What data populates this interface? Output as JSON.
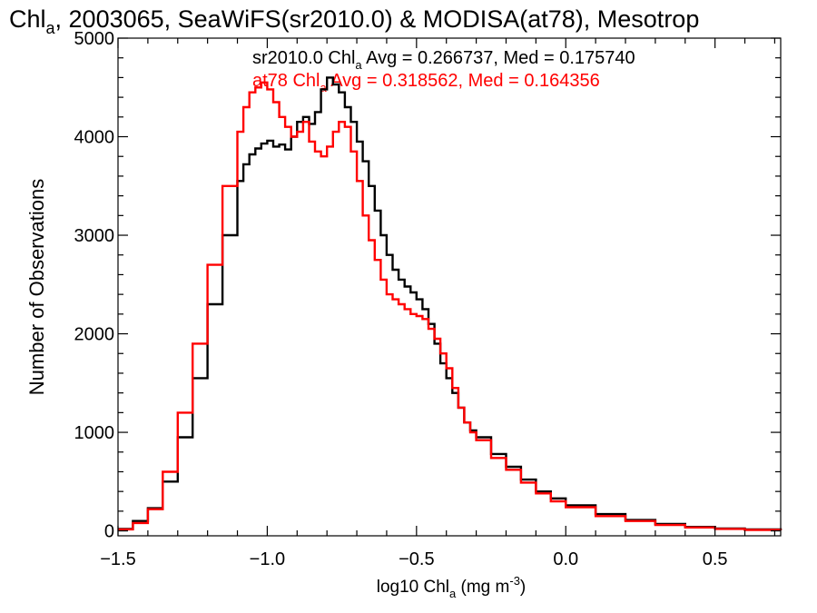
{
  "chart_data": {
    "type": "line",
    "title": {
      "prefix": "Chl",
      "sub": "a",
      "suffix": ", 2003065, SeaWiFS(sr2010.0) & MODISA(at78), Mesotrop"
    },
    "xlabel": {
      "prefix": "log10 Chl",
      "sub": "a",
      "mid": " (mg m",
      "sup": "-3",
      "suffix": ")"
    },
    "ylabel": "Number of Observations",
    "xlim": [
      -1.5,
      0.72
    ],
    "ylim": [
      -50,
      5000
    ],
    "xticks": [
      {
        "value": -1.5,
        "label": "−1.5"
      },
      {
        "value": -1.0,
        "label": "−1.0"
      },
      {
        "value": -0.5,
        "label": "−0.5"
      },
      {
        "value": 0.0,
        "label": "0.0"
      },
      {
        "value": 0.5,
        "label": "0.5"
      }
    ],
    "yticks": [
      {
        "value": 0,
        "label": "0"
      },
      {
        "value": 1000,
        "label": "1000"
      },
      {
        "value": 2000,
        "label": "2000"
      },
      {
        "value": 3000,
        "label": "3000"
      },
      {
        "value": 4000,
        "label": "4000"
      },
      {
        "value": 5000,
        "label": "5000"
      }
    ],
    "grid": false,
    "legend": "top-right",
    "series": [
      {
        "key": "sr2010",
        "color": "#000000",
        "legend": {
          "prefix": "sr2010.0 Chl",
          "sub": "a",
          "suffix": " Avg = 0.266737, Med = 0.175740"
        },
        "x": [
          -1.5,
          -1.45,
          -1.4,
          -1.35,
          -1.3,
          -1.25,
          -1.2,
          -1.15,
          -1.1,
          -1.08,
          -1.06,
          -1.04,
          -1.02,
          -1.0,
          -0.98,
          -0.96,
          -0.94,
          -0.92,
          -0.9,
          -0.88,
          -0.86,
          -0.84,
          -0.82,
          -0.8,
          -0.78,
          -0.76,
          -0.74,
          -0.72,
          -0.7,
          -0.68,
          -0.66,
          -0.64,
          -0.62,
          -0.6,
          -0.58,
          -0.56,
          -0.54,
          -0.52,
          -0.5,
          -0.48,
          -0.46,
          -0.44,
          -0.42,
          -0.4,
          -0.38,
          -0.36,
          -0.34,
          -0.32,
          -0.3,
          -0.25,
          -0.2,
          -0.15,
          -0.1,
          -0.05,
          0.0,
          0.1,
          0.2,
          0.3,
          0.4,
          0.5,
          0.6,
          0.72
        ],
        "y": [
          20,
          100,
          230,
          500,
          950,
          1550,
          2300,
          3000,
          3550,
          3720,
          3820,
          3880,
          3930,
          3960,
          3900,
          3920,
          3870,
          4000,
          4150,
          4200,
          4130,
          4250,
          4480,
          4600,
          4530,
          4450,
          4300,
          4150,
          3950,
          3750,
          3500,
          3250,
          3000,
          2800,
          2650,
          2550,
          2480,
          2420,
          2350,
          2250,
          2100,
          1900,
          1700,
          1550,
          1400,
          1250,
          1100,
          1020,
          950,
          780,
          650,
          520,
          400,
          330,
          260,
          170,
          110,
          70,
          40,
          25,
          15,
          8
        ]
      },
      {
        "key": "at78",
        "color": "#ff0000",
        "legend": {
          "prefix": "at78 Chl",
          "sub": "a",
          "suffix": " Avg = 0.318562, Med = 0.164356"
        },
        "x": [
          -1.5,
          -1.45,
          -1.4,
          -1.35,
          -1.3,
          -1.25,
          -1.2,
          -1.15,
          -1.1,
          -1.08,
          -1.06,
          -1.04,
          -1.02,
          -1.0,
          -0.98,
          -0.96,
          -0.94,
          -0.92,
          -0.9,
          -0.88,
          -0.86,
          -0.84,
          -0.82,
          -0.8,
          -0.78,
          -0.76,
          -0.74,
          -0.72,
          -0.7,
          -0.68,
          -0.66,
          -0.64,
          -0.62,
          -0.6,
          -0.58,
          -0.56,
          -0.54,
          -0.52,
          -0.5,
          -0.48,
          -0.46,
          -0.44,
          -0.42,
          -0.4,
          -0.38,
          -0.36,
          -0.34,
          -0.32,
          -0.3,
          -0.25,
          -0.2,
          -0.15,
          -0.1,
          -0.05,
          0.0,
          0.1,
          0.2,
          0.3,
          0.4,
          0.5,
          0.6,
          0.72
        ],
        "y": [
          15,
          80,
          220,
          600,
          1200,
          1900,
          2700,
          3500,
          4050,
          4300,
          4450,
          4500,
          4550,
          4480,
          4350,
          4200,
          4100,
          4000,
          4050,
          4150,
          3950,
          3850,
          3800,
          3900,
          4050,
          4150,
          4100,
          3850,
          3550,
          3200,
          2950,
          2750,
          2550,
          2400,
          2350,
          2300,
          2250,
          2200,
          2180,
          2150,
          2050,
          1950,
          1800,
          1650,
          1450,
          1250,
          1100,
          1000,
          920,
          740,
          620,
          490,
          380,
          300,
          240,
          150,
          100,
          60,
          35,
          20,
          10,
          5
        ]
      }
    ]
  }
}
